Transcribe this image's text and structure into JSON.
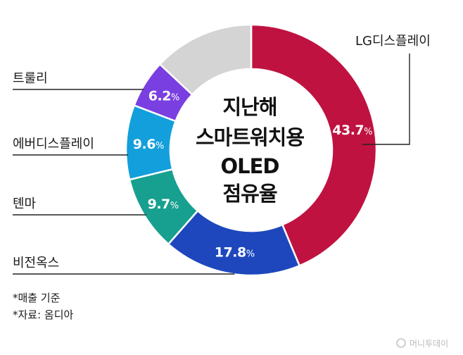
{
  "chart_data": {
    "type": "pie",
    "title": [
      "지난해",
      "스마트워치용",
      "OLED",
      "점유율"
    ],
    "unit": "%",
    "slices": [
      {
        "label": "LG디스플레이",
        "value": 43.7,
        "value_text": "43.7",
        "color": "#BF1240"
      },
      {
        "label": "비전옥스",
        "value": 17.8,
        "value_text": "17.8",
        "color": "#1E47BE"
      },
      {
        "label": "톈마",
        "value": 9.7,
        "value_text": "9.7",
        "color": "#17A08F"
      },
      {
        "label": "에버디스플레이",
        "value": 9.6,
        "value_text": "9.6",
        "color": "#139FDB"
      },
      {
        "label": "트룰리",
        "value": 6.2,
        "value_text": "6.2",
        "color": "#7A3FE0"
      },
      {
        "label": "",
        "value": 13.0,
        "value_text": "",
        "color": "#D4D4D4"
      }
    ],
    "notes": [
      "*매출 기준",
      "*자료: 옴디아"
    ]
  },
  "brand": "머니투데이"
}
